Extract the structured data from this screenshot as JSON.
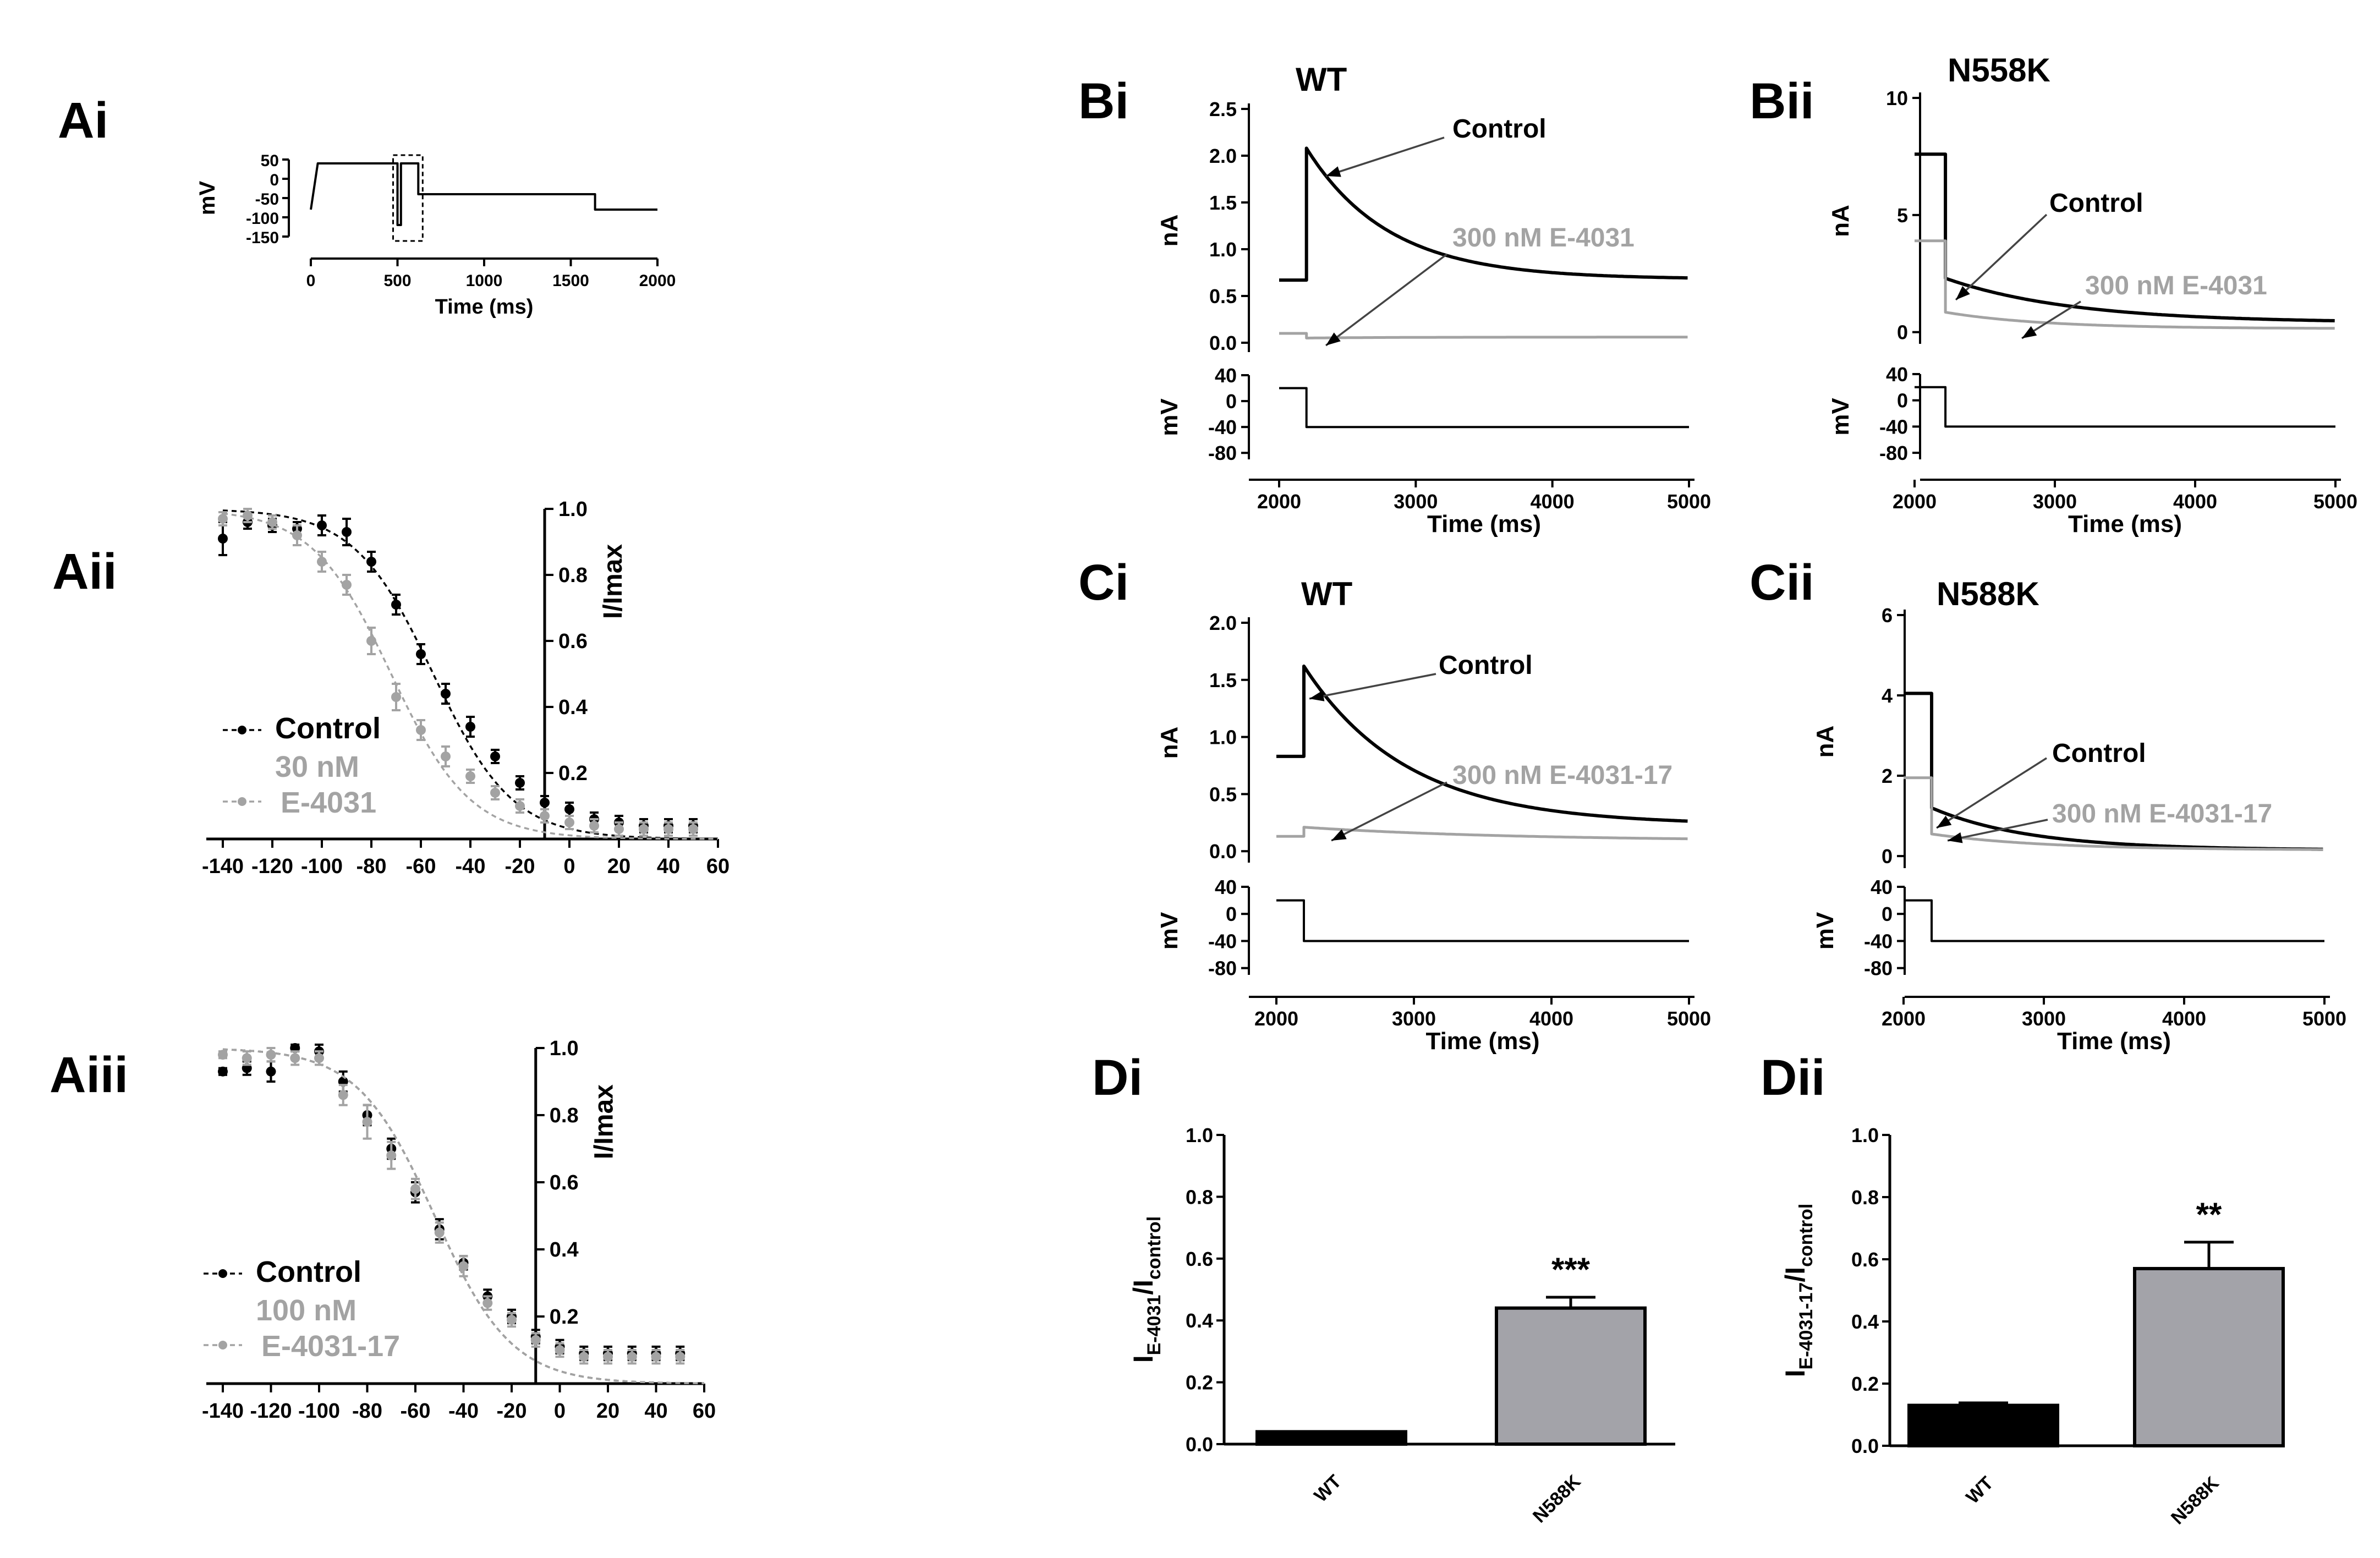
{
  "colors": {
    "control": "#000000",
    "drug": "#a3a3a3",
    "bar_wt": "#000000",
    "bar_n588k": "#a3a3a9"
  },
  "panels": {
    "Ai": "Ai",
    "Aii": "Aii",
    "Aiii": "Aiii",
    "Bi": "Bi",
    "Bii": "Bii",
    "Ci": "Ci",
    "Cii": "Cii",
    "Di": "Di",
    "Dii": "Dii"
  },
  "chart_data": [
    {
      "id": "Ai",
      "type": "line",
      "title": "",
      "xlabel": "Time (ms)",
      "ylabel": "mV",
      "xlim": [
        0,
        2000
      ],
      "ylim": [
        -150,
        50
      ],
      "xticks": [
        0,
        500,
        1000,
        1500,
        2000
      ],
      "yticks": [
        50,
        0,
        -50,
        -100,
        -150
      ],
      "protocol": {
        "x": [
          0,
          0,
          40,
          40,
          500,
          500,
          520,
          520,
          620,
          620,
          1640,
          1640,
          2000
        ],
        "y": [
          -80,
          -80,
          40,
          40,
          40,
          -120,
          -120,
          40,
          40,
          -40,
          -40,
          -80,
          -80
        ]
      },
      "highlight_box_x": [
        500,
        620
      ]
    },
    {
      "id": "Aii",
      "type": "scatter",
      "ylabel": "I/Imax",
      "xlabel": "",
      "xlim": [
        -140,
        60
      ],
      "ylim": [
        0,
        1.0
      ],
      "xticks": [
        -140,
        -120,
        -100,
        -80,
        -60,
        -40,
        -20,
        0,
        20,
        40,
        60
      ],
      "yticks": [
        0.2,
        0.4,
        0.6,
        0.8,
        1.0
      ],
      "legend": [
        "Control",
        "30 nM",
        "E-4031"
      ],
      "series": [
        {
          "name": "Control",
          "x": [
            -140,
            -130,
            -120,
            -110,
            -100,
            -90,
            -80,
            -70,
            -60,
            -50,
            -40,
            -30,
            -20,
            -10,
            0,
            10,
            20,
            30,
            40,
            50
          ],
          "y": [
            0.91,
            0.96,
            0.95,
            0.94,
            0.95,
            0.93,
            0.84,
            0.71,
            0.56,
            0.44,
            0.34,
            0.25,
            0.17,
            0.11,
            0.09,
            0.06,
            0.05,
            0.04,
            0.04,
            0.04
          ],
          "err": [
            0.05,
            0.02,
            0.02,
            0.02,
            0.03,
            0.04,
            0.03,
            0.03,
            0.03,
            0.03,
            0.03,
            0.02,
            0.02,
            0.02,
            0.02,
            0.02,
            0.02,
            0.02,
            0.02,
            0.02
          ],
          "fit_v50": -55,
          "fit_k": 16
        },
        {
          "name": "30 nM E-4031",
          "x": [
            -140,
            -130,
            -120,
            -110,
            -100,
            -90,
            -80,
            -70,
            -60,
            -50,
            -40,
            -30,
            -20,
            -10,
            0,
            10,
            20,
            30,
            40,
            50
          ],
          "y": [
            0.97,
            0.98,
            0.96,
            0.92,
            0.84,
            0.77,
            0.6,
            0.43,
            0.33,
            0.25,
            0.19,
            0.14,
            0.1,
            0.07,
            0.05,
            0.04,
            0.03,
            0.03,
            0.03,
            0.03
          ],
          "err": [
            0.02,
            0.02,
            0.02,
            0.03,
            0.03,
            0.03,
            0.04,
            0.04,
            0.03,
            0.03,
            0.02,
            0.02,
            0.02,
            0.02,
            0.02,
            0.02,
            0.02,
            0.02,
            0.02,
            0.02
          ],
          "fit_v50": -72,
          "fit_k": 16
        }
      ]
    },
    {
      "id": "Aiii",
      "type": "scatter",
      "ylabel": "I/Imax",
      "xlabel": "",
      "xlim": [
        -140,
        60
      ],
      "ylim": [
        0,
        1.0
      ],
      "xticks": [
        -140,
        -120,
        -100,
        -80,
        -60,
        -40,
        -20,
        0,
        20,
        40,
        60
      ],
      "yticks": [
        0.2,
        0.4,
        0.6,
        0.8,
        1.0
      ],
      "legend": [
        "Control",
        "100 nM",
        "E-4031-17"
      ],
      "series": [
        {
          "name": "Control",
          "x": [
            -140,
            -130,
            -120,
            -110,
            -100,
            -90,
            -80,
            -70,
            -60,
            -50,
            -40,
            -30,
            -20,
            -10,
            0,
            10,
            20,
            30,
            40,
            50
          ],
          "y": [
            0.93,
            0.94,
            0.93,
            1.0,
            0.99,
            0.9,
            0.8,
            0.7,
            0.57,
            0.46,
            0.36,
            0.26,
            0.2,
            0.14,
            0.11,
            0.09,
            0.09,
            0.09,
            0.09,
            0.09
          ],
          "err": [
            0.01,
            0.02,
            0.03,
            0.01,
            0.02,
            0.03,
            0.03,
            0.03,
            0.03,
            0.03,
            0.02,
            0.02,
            0.02,
            0.02,
            0.02,
            0.02,
            0.02,
            0.02,
            0.02,
            0.02
          ],
          "fit_v50": -52,
          "fit_k": 16
        },
        {
          "name": "100 nM E-4031-17",
          "x": [
            -140,
            -130,
            -120,
            -110,
            -100,
            -90,
            -80,
            -70,
            -60,
            -50,
            -40,
            -30,
            -20,
            -10,
            0,
            10,
            20,
            30,
            40,
            50
          ],
          "y": [
            0.98,
            0.97,
            0.98,
            0.97,
            0.97,
            0.86,
            0.78,
            0.68,
            0.58,
            0.45,
            0.35,
            0.24,
            0.19,
            0.13,
            0.1,
            0.08,
            0.08,
            0.08,
            0.08,
            0.08
          ],
          "err": [
            0.01,
            0.02,
            0.02,
            0.02,
            0.02,
            0.03,
            0.05,
            0.04,
            0.03,
            0.03,
            0.03,
            0.02,
            0.02,
            0.02,
            0.02,
            0.02,
            0.02,
            0.02,
            0.02,
            0.02
          ],
          "fit_v50": -52,
          "fit_k": 16
        }
      ]
    },
    {
      "id": "Bi",
      "type": "line",
      "title": "WT",
      "xlabel": "Time (ms)",
      "ylabel": "nA",
      "ylabel2": "mV",
      "xlim": [
        2000,
        5000
      ],
      "ylim": [
        -0.1,
        2.5
      ],
      "ylim2": [
        -90,
        40
      ],
      "xticks": [
        2000,
        3000,
        4000,
        5000
      ],
      "yticks": [
        0.0,
        0.5,
        1.0,
        1.5,
        2.0,
        2.5
      ],
      "yticks2": [
        40,
        0,
        -40,
        -80
      ],
      "yticklabels": [
        "0.0",
        "0.5",
        "1.0",
        "1.5",
        "2.0",
        "2.5"
      ],
      "series": [
        {
          "name": "Control",
          "pre": 0.67,
          "peak": 2.08,
          "end": 0.68,
          "tau": 600,
          "tstep": 2200
        },
        {
          "name": "300 nM E-4031",
          "pre": 0.1,
          "peak": 0.05,
          "end": 0.06,
          "tau": 600,
          "tstep": 2200
        }
      ],
      "protocol": {
        "hold": 20,
        "step": -40,
        "tstep": 2200
      },
      "annotations": [
        "Control",
        "300 nM E-4031"
      ]
    },
    {
      "id": "Bii",
      "type": "line",
      "title": "N558K",
      "xlabel": "Time (ms)",
      "ylabel": "nA",
      "ylabel2": "mV",
      "xlim": [
        2000,
        5000
      ],
      "ylim": [
        -0.5,
        10
      ],
      "ylim2": [
        -90,
        40
      ],
      "xticks": [
        2000,
        3000,
        4000,
        5000
      ],
      "yticks": [
        0,
        5,
        10
      ],
      "yticks2": [
        40,
        0,
        -40,
        -80
      ],
      "yticklabels": [
        "0",
        "5",
        "10"
      ],
      "yticks2_extra": [
        20,
        -20,
        -60
      ],
      "series": [
        {
          "name": "Control",
          "pre": 7.6,
          "peak": 2.3,
          "end": 0.4,
          "tau": 900,
          "tstep": 2220
        },
        {
          "name": "300 nM E-4031",
          "pre": 3.9,
          "peak": 0.85,
          "end": 0.15,
          "tau": 700,
          "tstep": 2220
        }
      ],
      "protocol": {
        "hold": 20,
        "step": -40,
        "tstep": 2220
      },
      "annotations": [
        "Control",
        "300 nM E-4031"
      ]
    },
    {
      "id": "Ci",
      "type": "line",
      "title": "WT",
      "xlabel": "Time (ms)",
      "ylabel": "nA",
      "ylabel2": "mV",
      "xlim": [
        2000,
        5000
      ],
      "ylim": [
        -0.1,
        2.0
      ],
      "ylim2": [
        -90,
        40
      ],
      "xticks": [
        2000,
        3000,
        4000,
        5000
      ],
      "yticks": [
        0.0,
        0.5,
        1.0,
        1.5,
        2.0
      ],
      "yticks2": [
        40,
        0,
        -40,
        -80
      ],
      "yticklabels": [
        "0.0",
        "0.5",
        "1.0",
        "1.5",
        "2.0"
      ],
      "series": [
        {
          "name": "Control",
          "pre": 0.83,
          "peak": 1.62,
          "end": 0.23,
          "tau": 750,
          "tstep": 2200
        },
        {
          "name": "300 nM E-4031-17",
          "pre": 0.13,
          "peak": 0.21,
          "end": 0.09,
          "tau": 1500,
          "tstep": 2200
        }
      ],
      "protocol": {
        "hold": 20,
        "step": -40,
        "tstep": 2200
      },
      "annotations": [
        "Control",
        "300 nM E-4031-17"
      ]
    },
    {
      "id": "Cii",
      "type": "line",
      "title": "N588K",
      "xlabel": "Time (ms)",
      "ylabel": "nA",
      "ylabel2": "mV",
      "xlim": [
        2000,
        5000
      ],
      "ylim": [
        -0.3,
        6
      ],
      "ylim2": [
        -90,
        40
      ],
      "xticks": [
        2000,
        3000,
        4000,
        5000
      ],
      "yticks": [
        0,
        2,
        4,
        6
      ],
      "yticks2": [
        40,
        0,
        -40,
        -80
      ],
      "yticklabels": [
        "0",
        "2",
        "4",
        "6"
      ],
      "series": [
        {
          "name": "Control",
          "pre": 4.05,
          "peak": 1.2,
          "end": 0.15,
          "tau": 700,
          "tstep": 2200
        },
        {
          "name": "300 nM E-4031-17",
          "pre": 1.95,
          "peak": 0.55,
          "end": 0.15,
          "tau": 800,
          "tstep": 2200
        }
      ],
      "protocol": {
        "hold": 20,
        "step": -40,
        "tstep": 2200
      },
      "annotations": [
        "Control",
        "300 nM E-4031-17"
      ]
    },
    {
      "id": "Di",
      "type": "bar",
      "ylabel_main": "I",
      "ylabel_sub1": "E-4031",
      "ylabel_mid": "/I",
      "ylabel_sub2": "control",
      "categories": [
        "WT",
        "N588K"
      ],
      "values": [
        0.04,
        0.44
      ],
      "err": [
        0.0,
        0.035
      ],
      "ylim": [
        0,
        1.0
      ],
      "yticks": [
        0.0,
        0.2,
        0.4,
        0.6,
        0.8,
        1.0
      ],
      "significance": "***"
    },
    {
      "id": "Dii",
      "type": "bar",
      "ylabel_main": "I",
      "ylabel_sub1": "E-4031-17",
      "ylabel_mid": "/I",
      "ylabel_sub2": "control",
      "categories": [
        "WT",
        "N588K"
      ],
      "values": [
        0.13,
        0.57
      ],
      "err": [
        0.008,
        0.085
      ],
      "ylim": [
        0,
        1.0
      ],
      "yticks": [
        0.0,
        0.2,
        0.4,
        0.6,
        0.8,
        1.0
      ],
      "significance": "**"
    }
  ]
}
